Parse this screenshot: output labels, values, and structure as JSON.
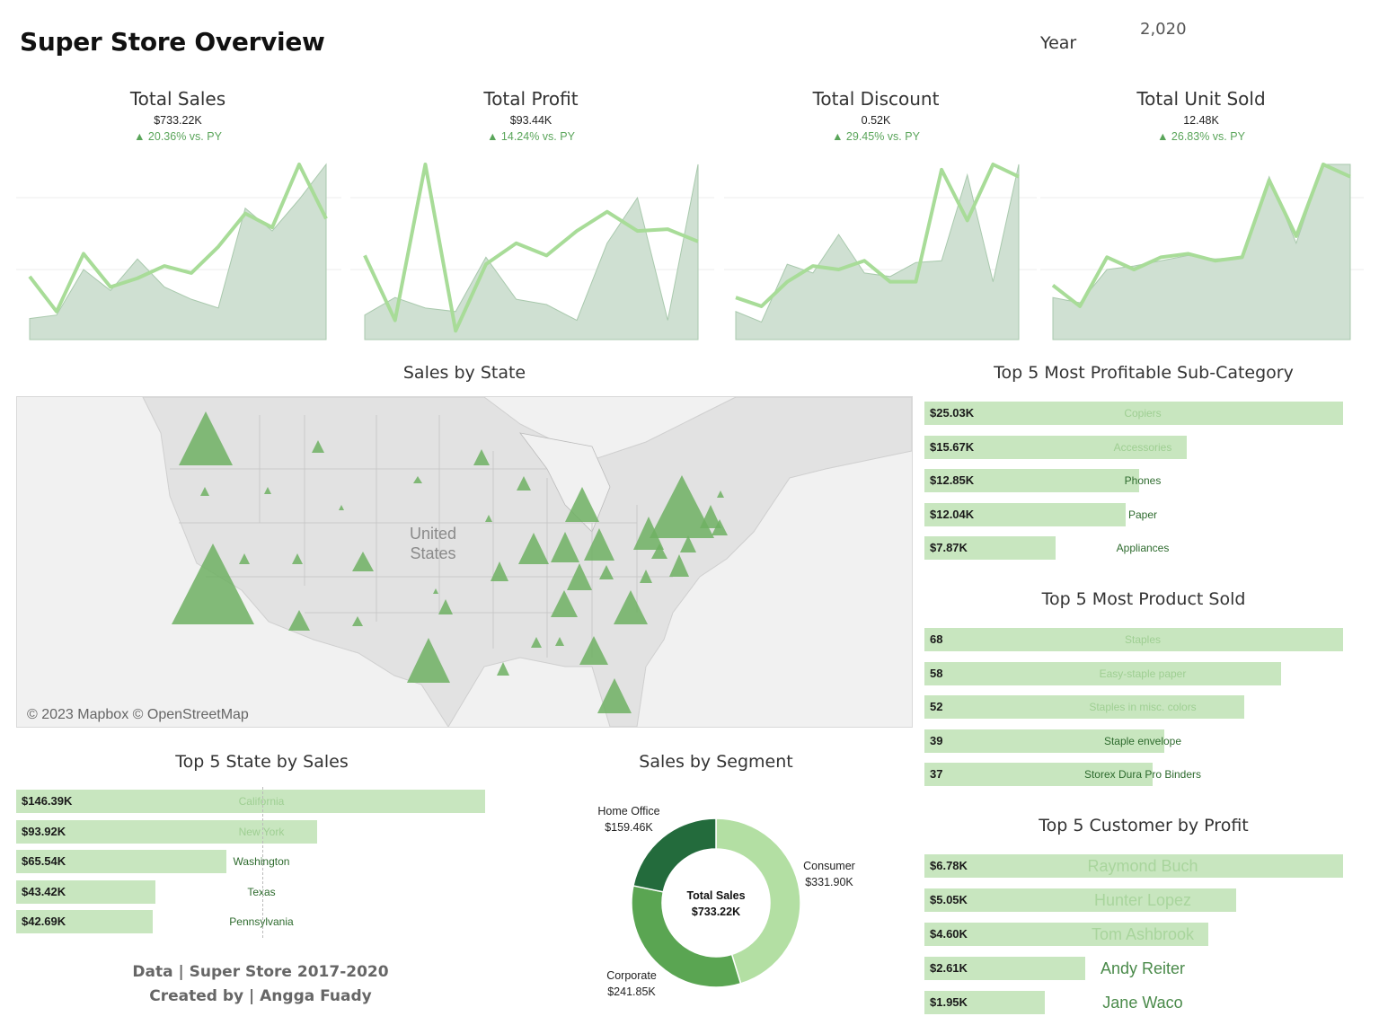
{
  "header": {
    "title": "Super Store Overview",
    "year_label": "Year",
    "year_value": "2,020"
  },
  "kpis": [
    {
      "title": "Total Sales",
      "value": "$733.22K",
      "change": "▲ 20.36% vs. PY",
      "area": [
        12,
        14,
        40,
        28,
        46,
        30,
        23,
        18,
        75,
        62,
        80,
        100
      ],
      "line": [
        36,
        16,
        49,
        30,
        35,
        42,
        38,
        53,
        72,
        64,
        100,
        69
      ]
    },
    {
      "title": "Total Profit",
      "value": "$93.44K",
      "change": "▲ 14.24% vs. PY",
      "area": [
        14,
        24,
        18,
        16,
        47,
        23,
        20,
        11,
        55,
        81,
        11,
        100
      ],
      "line": [
        48,
        11,
        100,
        5,
        43,
        55,
        48,
        62,
        73,
        62,
        63,
        56
      ]
    },
    {
      "title": "Total Discount",
      "value": "0.52K",
      "change": "▲ 29.45% vs. PY",
      "area": [
        16,
        10,
        43,
        38,
        60,
        38,
        36,
        44,
        45,
        94,
        33,
        100
      ],
      "line": [
        24,
        19,
        33,
        42,
        40,
        45,
        33,
        33,
        97,
        68,
        100,
        93
      ]
    },
    {
      "title": "Total Unit Sold",
      "value": "12.48K",
      "change": "▲ 26.83% vs. PY",
      "area": [
        24,
        21,
        40,
        42,
        45,
        48,
        46,
        47,
        93,
        55,
        100,
        100
      ],
      "line": [
        31,
        19,
        47,
        40,
        47,
        49,
        45,
        47,
        91,
        59,
        100,
        93
      ]
    }
  ],
  "map": {
    "title": "Sales by State",
    "country_label_line1": "United",
    "country_label_line2": "States",
    "credit": "© 2023 Mapbox © OpenStreetMap"
  },
  "top_subcategory": {
    "title": "Top 5 Most Profitable Sub-Category",
    "items": [
      {
        "value": "$25.03K",
        "label": "Copiers",
        "fraction": 1.0
      },
      {
        "value": "$15.67K",
        "label": "Accessories",
        "fraction": 0.626
      },
      {
        "value": "$12.85K",
        "label": "Phones",
        "fraction": 0.513
      },
      {
        "value": "$12.04K",
        "label": "Paper",
        "fraction": 0.481
      },
      {
        "value": "$7.87K",
        "label": "Appliances",
        "fraction": 0.314
      }
    ]
  },
  "top_products": {
    "title": "Top 5 Most Product Sold",
    "items": [
      {
        "value": "68",
        "label": "Staples",
        "fraction": 1.0
      },
      {
        "value": "58",
        "label": "Easy-staple paper",
        "fraction": 0.853
      },
      {
        "value": "52",
        "label": "Staples in misc. colors",
        "fraction": 0.765
      },
      {
        "value": "39",
        "label": "Staple envelope",
        "fraction": 0.574
      },
      {
        "value": "37",
        "label": "Storex Dura Pro Binders",
        "fraction": 0.544
      }
    ]
  },
  "top_customers": {
    "title": "Top 5 Customer by Profit",
    "items": [
      {
        "value": "$6.78K",
        "label": "Raymond Buch",
        "fraction": 1.0
      },
      {
        "value": "$5.05K",
        "label": "Hunter Lopez",
        "fraction": 0.745
      },
      {
        "value": "$4.60K",
        "label": "Tom Ashbrook",
        "fraction": 0.678
      },
      {
        "value": "$2.61K",
        "label": "Andy Reiter",
        "fraction": 0.385
      },
      {
        "value": "$1.95K",
        "label": "Jane Waco",
        "fraction": 0.288
      }
    ]
  },
  "top_states": {
    "title": "Top 5 State by Sales",
    "items": [
      {
        "value": "$146.39K",
        "label": "California",
        "fraction": 1.0
      },
      {
        "value": "$93.92K",
        "label": "New York",
        "fraction": 0.642
      },
      {
        "value": "$65.54K",
        "label": "Washington",
        "fraction": 0.448
      },
      {
        "value": "$43.42K",
        "label": "Texas",
        "fraction": 0.297
      },
      {
        "value": "$42.69K",
        "label": "Pennsylvania",
        "fraction": 0.292
      }
    ]
  },
  "segment": {
    "title": "Sales by Segment",
    "center_line1": "Total Sales",
    "center_line2": "$733.22K",
    "slices": [
      {
        "name": "Consumer",
        "value": "$331.90K",
        "amount": 331.9,
        "color": "#b3dfa3"
      },
      {
        "name": "Corporate",
        "value": "$241.85K",
        "amount": 241.85,
        "color": "#5aa552"
      },
      {
        "name": "Home Office",
        "value": "$159.46K",
        "amount": 159.46,
        "color": "#236b3c"
      }
    ]
  },
  "footer": {
    "line1": "Data | Super Store 2017-2020",
    "line2": "Created by | Angga Fuady"
  },
  "colors": {
    "area_fill": "#cfe0d2",
    "area_stroke": "#a9c9ad",
    "line": "#a8dc98",
    "bar": "#c8e6bf",
    "triangle": "#6fb063"
  }
}
